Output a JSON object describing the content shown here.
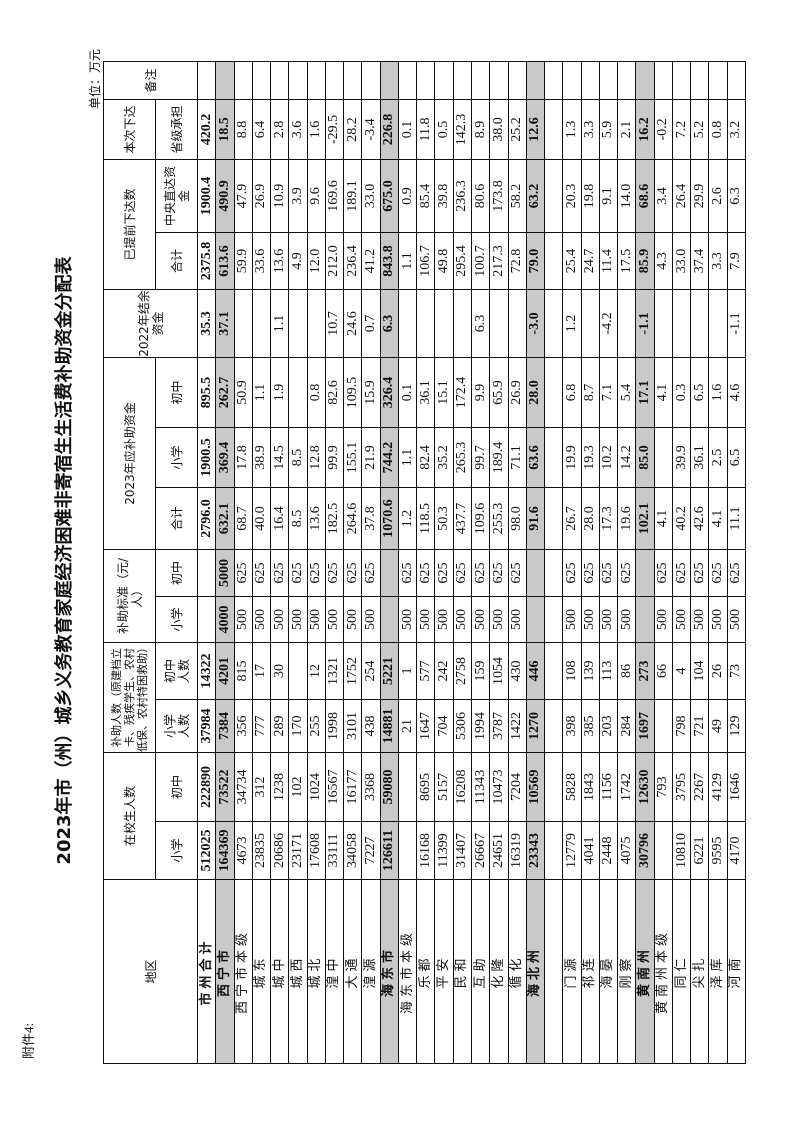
{
  "attachment_label": "附件4:",
  "title": "2023年市（州）城乡义务教育家庭经济困难非寄宿生生活费补助资金分配表",
  "unit": "单位：万元",
  "headers": {
    "region": "地区",
    "students": "在校生人数",
    "students_primary": "小学",
    "students_junior": "初中",
    "aided": "补助人数（原建档立卡、残疾学生、农村低保、农村特困救助）",
    "aided_primary": "小学人数",
    "aided_junior": "初中人数",
    "standard": "补助标准（元/人）",
    "standard_primary": "小学",
    "standard_junior": "初中",
    "funds2023": "2023年应补助资金",
    "funds2023_total": "合计",
    "funds2023_primary": "小学",
    "funds2023_junior": "初中",
    "balance2022": "2022年结余资金",
    "advance": "已提前下达数",
    "advance_total": "合计",
    "advance_central": "中央直达资金",
    "current": "本次下达",
    "current_provincial": "省级承担",
    "remarks": "备注"
  },
  "rows": [
    {
      "type": "total",
      "region": "市州合计",
      "cells": [
        "512025",
        "222890",
        "37984",
        "14322",
        "",
        "",
        "2796.0",
        "1900.5",
        "895.5",
        "35.3",
        "2375.8",
        "1900.4",
        "420.2",
        ""
      ]
    },
    {
      "type": "subtotal",
      "region": "西宁市",
      "cells": [
        "164369",
        "73522",
        "7384",
        "4201",
        "4000",
        "5000",
        "632.1",
        "369.4",
        "262.7",
        "37.1",
        "613.6",
        "490.9",
        "18.5",
        ""
      ]
    },
    {
      "type": "",
      "region": "西宁市本级",
      "cells": [
        "4673",
        "34734",
        "356",
        "815",
        "500",
        "625",
        "68.7",
        "17.8",
        "50.9",
        "",
        "59.9",
        "47.9",
        "8.8",
        ""
      ]
    },
    {
      "type": "",
      "region": "城东",
      "cells": [
        "23835",
        "312",
        "777",
        "17",
        "500",
        "625",
        "40.0",
        "38.9",
        "1.1",
        "",
        "33.6",
        "26.9",
        "6.4",
        ""
      ]
    },
    {
      "type": "",
      "region": "城中",
      "cells": [
        "20686",
        "1238",
        "289",
        "30",
        "500",
        "625",
        "16.4",
        "14.5",
        "1.9",
        "1.1",
        "13.6",
        "10.9",
        "2.8",
        ""
      ]
    },
    {
      "type": "",
      "region": "城西",
      "cells": [
        "23171",
        "102",
        "170",
        "",
        "500",
        "625",
        "8.5",
        "8.5",
        "",
        "",
        "4.9",
        "3.9",
        "3.6",
        ""
      ]
    },
    {
      "type": "",
      "region": "城北",
      "cells": [
        "17608",
        "1024",
        "255",
        "12",
        "500",
        "625",
        "13.6",
        "12.8",
        "0.8",
        "",
        "12.0",
        "9.6",
        "1.6",
        ""
      ]
    },
    {
      "type": "",
      "region": "湟中",
      "cells": [
        "33111",
        "16567",
        "1998",
        "1321",
        "500",
        "625",
        "182.5",
        "99.9",
        "82.6",
        "10.7",
        "212.0",
        "169.6",
        "-29.5",
        ""
      ]
    },
    {
      "type": "",
      "region": "大通",
      "cells": [
        "34058",
        "16177",
        "3101",
        "1752",
        "500",
        "625",
        "264.6",
        "155.1",
        "109.5",
        "24.6",
        "236.4",
        "189.1",
        "28.2",
        ""
      ]
    },
    {
      "type": "",
      "region": "湟源",
      "cells": [
        "7227",
        "3368",
        "438",
        "254",
        "500",
        "625",
        "37.8",
        "21.9",
        "15.9",
        "0.7",
        "41.2",
        "33.0",
        "-3.4",
        ""
      ]
    },
    {
      "type": "subtotal",
      "region": "海东市",
      "cells": [
        "126611",
        "59080",
        "14881",
        "5221",
        "",
        "",
        "1070.6",
        "744.2",
        "326.4",
        "6.3",
        "843.8",
        "675.0",
        "226.8",
        ""
      ]
    },
    {
      "type": "",
      "region": "海东市本级",
      "cells": [
        "",
        "",
        "21",
        "1",
        "500",
        "625",
        "1.2",
        "1.1",
        "0.1",
        "",
        "1.1",
        "0.9",
        "0.1",
        ""
      ]
    },
    {
      "type": "",
      "region": "乐都",
      "cells": [
        "16168",
        "8695",
        "1647",
        "577",
        "500",
        "625",
        "118.5",
        "82.4",
        "36.1",
        "",
        "106.7",
        "85.4",
        "11.8",
        ""
      ]
    },
    {
      "type": "",
      "region": "平安",
      "cells": [
        "11399",
        "5157",
        "704",
        "242",
        "500",
        "625",
        "50.3",
        "35.2",
        "15.1",
        "",
        "49.8",
        "39.8",
        "0.5",
        ""
      ]
    },
    {
      "type": "",
      "region": "民和",
      "cells": [
        "31407",
        "16208",
        "5306",
        "2758",
        "500",
        "625",
        "437.7",
        "265.3",
        "172.4",
        "",
        "295.4",
        "236.3",
        "142.3",
        ""
      ]
    },
    {
      "type": "",
      "region": "互助",
      "cells": [
        "26667",
        "11343",
        "1994",
        "159",
        "500",
        "625",
        "109.6",
        "99.7",
        "9.9",
        "6.3",
        "100.7",
        "80.6",
        "8.9",
        ""
      ]
    },
    {
      "type": "",
      "region": "化隆",
      "cells": [
        "24651",
        "10473",
        "3787",
        "1054",
        "500",
        "625",
        "255.3",
        "189.4",
        "65.9",
        "",
        "217.3",
        "173.8",
        "38.0",
        ""
      ]
    },
    {
      "type": "",
      "region": "循化",
      "cells": [
        "16319",
        "7204",
        "1422",
        "430",
        "500",
        "625",
        "98.0",
        "71.1",
        "26.9",
        "",
        "72.8",
        "58.2",
        "25.2",
        ""
      ]
    },
    {
      "type": "subtotal",
      "region": "海北州",
      "cells": [
        "23343",
        "10569",
        "1270",
        "446",
        "",
        "",
        "91.6",
        "63.6",
        "28.0",
        "-3.0",
        "79.0",
        "63.2",
        "12.6",
        ""
      ]
    },
    {
      "type": "",
      "region": "",
      "cells": [
        "",
        "",
        "",
        "",
        "",
        "",
        "",
        "",
        "",
        "",
        "",
        "",
        "",
        ""
      ]
    },
    {
      "type": "",
      "region": "门源",
      "cells": [
        "12779",
        "5828",
        "398",
        "108",
        "500",
        "625",
        "26.7",
        "19.9",
        "6.8",
        "1.2",
        "25.4",
        "20.3",
        "1.3",
        ""
      ]
    },
    {
      "type": "",
      "region": "祁连",
      "cells": [
        "4041",
        "1843",
        "385",
        "139",
        "500",
        "625",
        "28.0",
        "19.3",
        "8.7",
        "",
        "24.7",
        "19.8",
        "3.3",
        ""
      ]
    },
    {
      "type": "",
      "region": "海晏",
      "cells": [
        "2448",
        "1156",
        "203",
        "113",
        "500",
        "625",
        "17.3",
        "10.2",
        "7.1",
        "-4.2",
        "11.4",
        "9.1",
        "5.9",
        ""
      ]
    },
    {
      "type": "",
      "region": "刚察",
      "cells": [
        "4075",
        "1742",
        "284",
        "86",
        "500",
        "625",
        "19.6",
        "14.2",
        "5.4",
        "",
        "17.5",
        "14.0",
        "2.1",
        ""
      ]
    },
    {
      "type": "subtotal",
      "region": "黄南州",
      "cells": [
        "30796",
        "12630",
        "1697",
        "273",
        "",
        "",
        "102.1",
        "85.0",
        "17.1",
        "-1.1",
        "85.9",
        "68.6",
        "16.2",
        ""
      ]
    },
    {
      "type": "",
      "region": "黄南州本级",
      "cells": [
        "",
        "793",
        "",
        "66",
        "500",
        "625",
        "4.1",
        "",
        "4.1",
        "",
        "4.3",
        "3.4",
        "-0.2",
        ""
      ]
    },
    {
      "type": "",
      "region": "同仁",
      "cells": [
        "10810",
        "3795",
        "798",
        "4",
        "500",
        "625",
        "40.2",
        "39.9",
        "0.3",
        "",
        "33.0",
        "26.4",
        "7.2",
        ""
      ]
    },
    {
      "type": "",
      "region": "尖扎",
      "cells": [
        "6221",
        "2267",
        "721",
        "104",
        "500",
        "625",
        "42.6",
        "36.1",
        "6.5",
        "",
        "37.4",
        "29.9",
        "5.2",
        ""
      ]
    },
    {
      "type": "",
      "region": "泽库",
      "cells": [
        "9595",
        "4129",
        "49",
        "26",
        "500",
        "625",
        "4.1",
        "2.5",
        "1.6",
        "",
        "3.3",
        "2.6",
        "0.8",
        ""
      ]
    },
    {
      "type": "",
      "region": "河南",
      "cells": [
        "4170",
        "1646",
        "129",
        "73",
        "500",
        "625",
        "11.1",
        "6.5",
        "4.6",
        "-1.1",
        "7.9",
        "6.3",
        "3.2",
        ""
      ]
    }
  ]
}
